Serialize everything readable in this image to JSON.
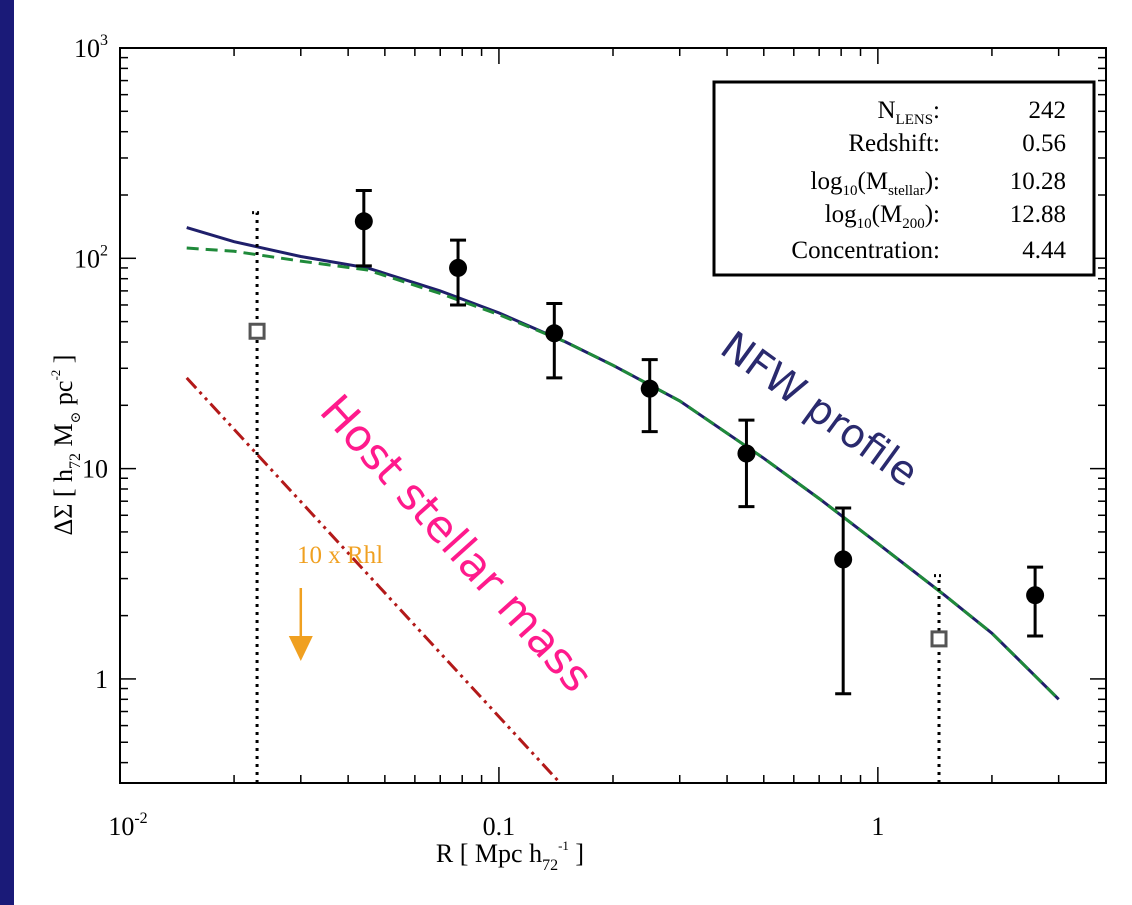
{
  "chart_data": {
    "type": "scatter",
    "xscale": "log",
    "yscale": "log",
    "xlim": [
      0.01,
      4.0
    ],
    "ylim": [
      0.32,
      1000
    ],
    "x_ticks": [
      {
        "value": 0.01,
        "base": "10",
        "exp": "-2"
      },
      {
        "value": 0.1,
        "text": "0.1"
      },
      {
        "value": 1,
        "text": "1"
      }
    ],
    "y_ticks": [
      {
        "value": 1,
        "text": "1"
      },
      {
        "value": 10,
        "text": "10"
      },
      {
        "value": 100,
        "base": "10",
        "exp": "2"
      },
      {
        "value": 1000,
        "base": "10",
        "exp": "3"
      }
    ],
    "xlabel": {
      "pre": "R  [ Mpc  h",
      "sub": "72",
      "sup": "-1",
      "post": " ]"
    },
    "ylabel": {
      "pre": "ΔΣ   [ h",
      "sub": "72",
      "mid": "  M",
      "sub2": "⊙",
      "mid2": "  pc",
      "sup": "-2",
      "post": "  ]"
    },
    "measurements": [
      {
        "x": 0.044,
        "y": 150,
        "lo": 92,
        "hi": 210
      },
      {
        "x": 0.078,
        "y": 90,
        "lo": 60,
        "hi": 122
      },
      {
        "x": 0.14,
        "y": 44,
        "lo": 27,
        "hi": 61
      },
      {
        "x": 0.25,
        "y": 24,
        "lo": 15,
        "hi": 33
      },
      {
        "x": 0.45,
        "y": 11.8,
        "lo": 6.6,
        "hi": 17
      },
      {
        "x": 0.81,
        "y": 3.7,
        "lo": 0.85,
        "hi": 6.5
      },
      {
        "x": 2.6,
        "y": 2.5,
        "lo": 1.6,
        "hi": 3.4
      }
    ],
    "open_points": [
      {
        "x": 0.023,
        "y": 45,
        "hi": 165
      },
      {
        "x": 1.45,
        "y": 1.55,
        "hi": 3.1
      }
    ],
    "series": [
      {
        "x": [
          0.015,
          0.02,
          0.03,
          0.045,
          0.07,
          0.1,
          0.15,
          0.2,
          0.3,
          0.5,
          0.7,
          1.0,
          1.5,
          2.0,
          3.0
        ],
        "y": [
          140,
          120,
          102,
          90,
          70,
          55,
          40,
          31,
          21,
          11.2,
          7.2,
          4.4,
          2.5,
          1.65,
          0.8
        ]
      },
      {
        "x": [
          0.015,
          0.02,
          0.03,
          0.045,
          0.07,
          0.1,
          0.15,
          0.2,
          0.3,
          0.5,
          0.7,
          1.0,
          1.5,
          2.0,
          3.0
        ],
        "y": [
          112,
          108,
          97,
          88,
          68,
          54,
          40,
          31,
          21,
          11.2,
          7.2,
          4.4,
          2.5,
          1.65,
          0.8
        ]
      },
      {
        "x": [
          0.015,
          0.145
        ],
        "y": [
          27,
          0.32
        ]
      }
    ],
    "rhl_marker": {
      "x": 0.03,
      "label": "10 x Rhl"
    },
    "legend_box": {
      "rows": [
        {
          "label": "N",
          "label_sub": "LENS",
          "label_tail": ":",
          "value": "242"
        },
        {
          "label": "Redshift:",
          "value": "0.56"
        },
        {
          "label": "log",
          "label_sub": "10",
          "label_tail": "(M",
          "label_sub2": "stellar",
          "label_tail2": "):",
          "value": "10.28"
        },
        {
          "label": "log",
          "label_sub": "10",
          "label_tail": "(M",
          "label_sub2": "200",
          "label_tail2": "):",
          "value": "12.88"
        },
        {
          "label": "Concentration:",
          "value": "4.44"
        }
      ]
    },
    "annotations": [
      {
        "text": "NFW profile",
        "color": "#2a2a6e"
      },
      {
        "text": "Host stellar mass",
        "color": "#ff1a8c"
      }
    ],
    "colors": {
      "nfw_line": "#1f1f6b",
      "total_dashed": "#1f8a3a",
      "stellar_line": "#b31919",
      "rhl_arrow": "#f0a020",
      "points": "#000000",
      "open_points": "#555555",
      "background": "#1a1a78"
    }
  }
}
